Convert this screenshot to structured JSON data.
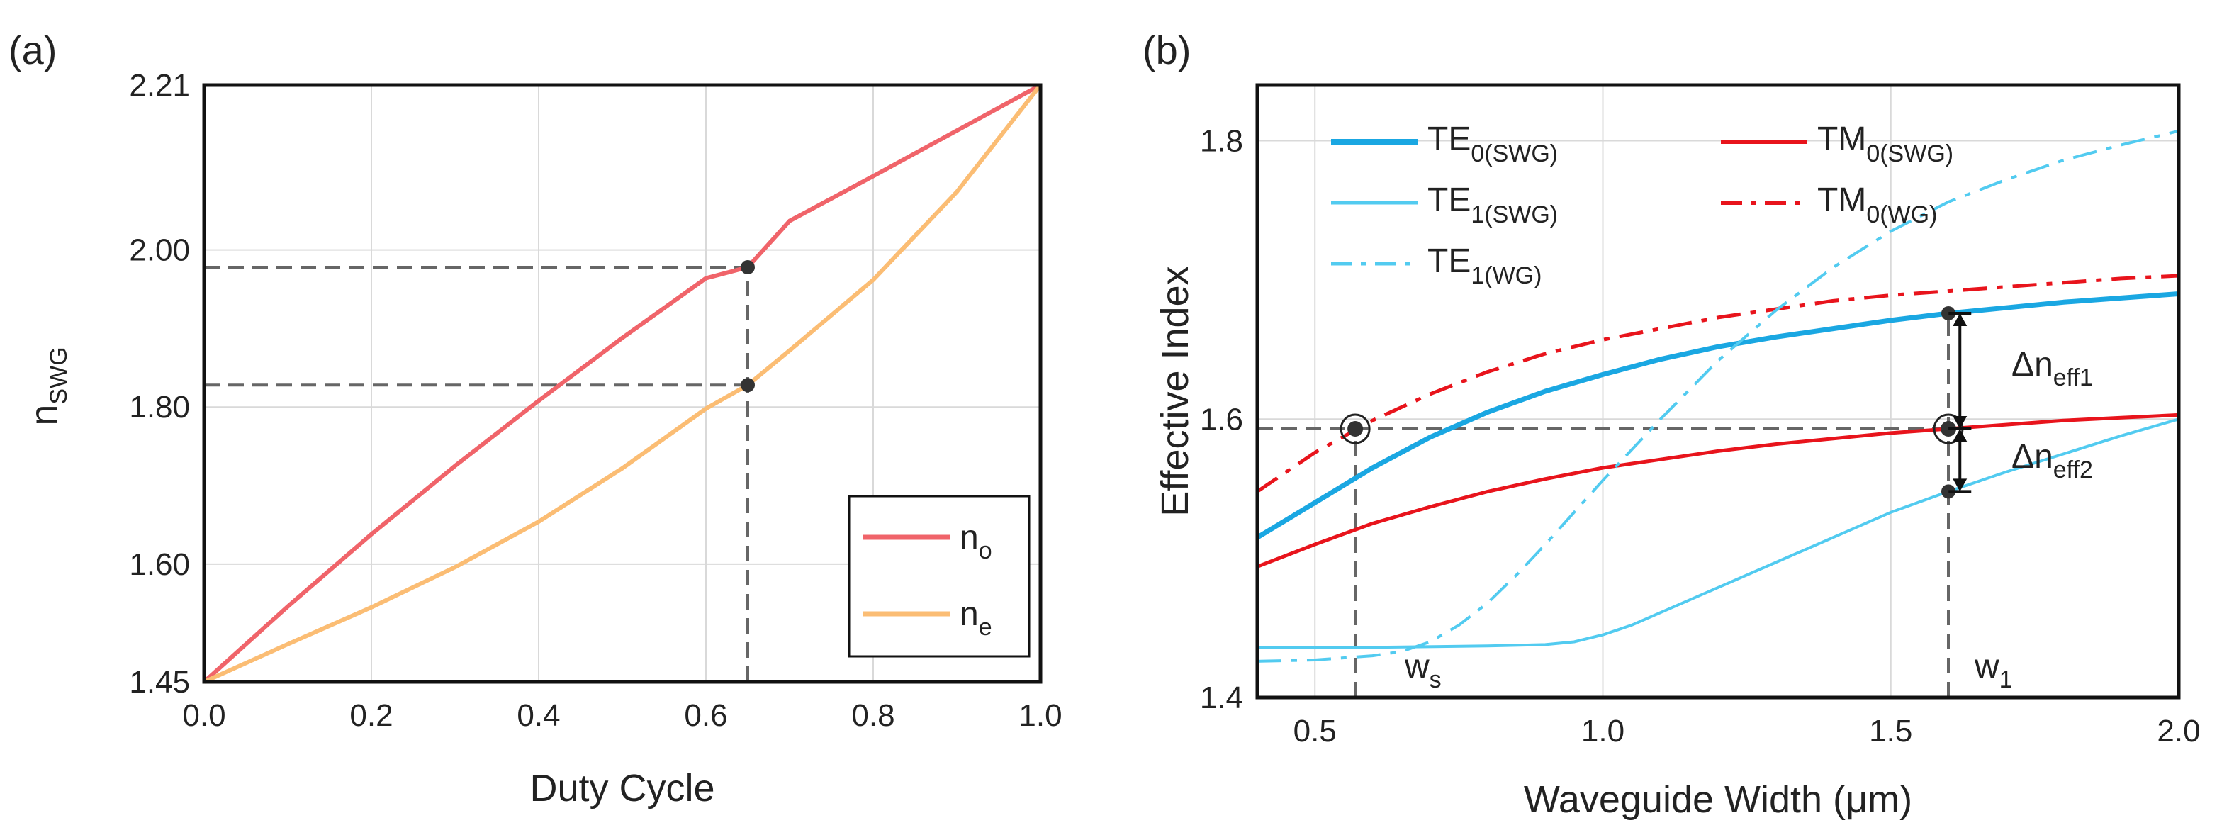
{
  "chart_data": [
    {
      "type": "line",
      "panel_label": "(a)",
      "xlabel": "Duty Cycle",
      "ylabel": "n",
      "ylabel_sub": "SWG",
      "xlim": [
        0,
        1
      ],
      "ylim": [
        1.45,
        2.21
      ],
      "xticks": [
        {
          "v": 0.0,
          "label": "0.0"
        },
        {
          "v": 0.2,
          "label": "0.2"
        },
        {
          "v": 0.4,
          "label": "0.4"
        },
        {
          "v": 0.6,
          "label": "0.6"
        },
        {
          "v": 0.8,
          "label": "0.8"
        },
        {
          "v": 1.0,
          "label": "1.0"
        }
      ],
      "yticks": [
        {
          "v": 1.45,
          "label": "1.45"
        },
        {
          "v": 1.6,
          "label": "1.60"
        },
        {
          "v": 1.8,
          "label": "1.80"
        },
        {
          "v": 2.0,
          "label": "2.00"
        },
        {
          "v": 2.21,
          "label": "2.21"
        }
      ],
      "grid": true,
      "legend_position": "bottom-right",
      "series": [
        {
          "name": "n",
          "sub": "o",
          "color": "#f0646a",
          "style": "solid",
          "x": [
            0,
            0.1,
            0.2,
            0.3,
            0.4,
            0.5,
            0.6,
            0.65,
            0.7,
            0.8,
            0.9,
            1.0
          ],
          "y": [
            1.45,
            1.546,
            1.638,
            1.725,
            1.808,
            1.888,
            1.964,
            1.978,
            2.037,
            2.094,
            2.152,
            2.21
          ]
        },
        {
          "name": "n",
          "sub": "e",
          "color": "#fbbd74",
          "style": "solid",
          "x": [
            0,
            0.1,
            0.2,
            0.3,
            0.4,
            0.5,
            0.6,
            0.65,
            0.7,
            0.8,
            0.9,
            1.0
          ],
          "y": [
            1.45,
            1.498,
            1.545,
            1.596,
            1.654,
            1.722,
            1.798,
            1.828,
            1.872,
            1.962,
            2.074,
            2.21
          ]
        }
      ],
      "markers": [
        {
          "x": 0.65,
          "y": 1.978
        },
        {
          "x": 0.65,
          "y": 1.828
        }
      ],
      "guides": [
        {
          "x1": 0,
          "y1": 1.978,
          "x2": 0.65,
          "y2": 1.978
        },
        {
          "x1": 0,
          "y1": 1.828,
          "x2": 0.65,
          "y2": 1.828
        },
        {
          "x1": 0.65,
          "y1": 1.45,
          "x2": 0.65,
          "y2": 1.978
        }
      ]
    },
    {
      "type": "line",
      "panel_label": "(b)",
      "xlabel": "Waveguide Width (μm)",
      "ylabel": "Effective Index",
      "xlim": [
        0.4,
        2.0
      ],
      "ylim": [
        1.4,
        1.84
      ],
      "xticks": [
        {
          "v": 0.5,
          "label": "0.5"
        },
        {
          "v": 1.0,
          "label": "1.0"
        },
        {
          "v": 1.5,
          "label": "1.5"
        },
        {
          "v": 2.0,
          "label": "2.0"
        }
      ],
      "yticks": [
        {
          "v": 1.4,
          "label": "1.4"
        },
        {
          "v": 1.6,
          "label": "1.6"
        },
        {
          "v": 1.8,
          "label": "1.8"
        }
      ],
      "grid": true,
      "legend_position": "top-left",
      "series": [
        {
          "name": "TE",
          "sub": "0(SWG)",
          "color": "#1aa7e2",
          "style": "solid",
          "width": 7,
          "x": [
            0.4,
            0.5,
            0.6,
            0.7,
            0.8,
            0.9,
            1.0,
            1.1,
            1.2,
            1.3,
            1.4,
            1.5,
            1.6,
            1.7,
            1.8,
            1.9,
            2.0
          ],
          "y": [
            1.515,
            1.54,
            1.565,
            1.587,
            1.605,
            1.62,
            1.632,
            1.643,
            1.652,
            1.659,
            1.665,
            1.671,
            1.676,
            1.68,
            1.684,
            1.687,
            1.69
          ]
        },
        {
          "name": "TM",
          "sub": "0(SWG)",
          "color": "#e8141c",
          "style": "solid",
          "width": 5,
          "x": [
            0.4,
            0.5,
            0.6,
            0.7,
            0.8,
            0.9,
            1.0,
            1.1,
            1.2,
            1.3,
            1.4,
            1.5,
            1.6,
            1.7,
            1.8,
            1.9,
            2.0
          ],
          "y": [
            1.494,
            1.51,
            1.525,
            1.537,
            1.548,
            1.557,
            1.565,
            1.571,
            1.577,
            1.582,
            1.586,
            1.59,
            1.593,
            1.596,
            1.599,
            1.601,
            1.603
          ]
        },
        {
          "name": "TE",
          "sub": "1(SWG)",
          "color": "#52cbf0",
          "style": "solid",
          "width": 4,
          "x": [
            0.4,
            0.6,
            0.8,
            0.9,
            0.95,
            1.0,
            1.05,
            1.1,
            1.2,
            1.3,
            1.4,
            1.5,
            1.6,
            1.7,
            1.8,
            1.9,
            2.0
          ],
          "y": [
            1.436,
            1.436,
            1.437,
            1.438,
            1.44,
            1.445,
            1.452,
            1.461,
            1.479,
            1.497,
            1.515,
            1.533,
            1.548,
            1.562,
            1.575,
            1.588,
            1.6
          ]
        },
        {
          "name": "TM",
          "sub": "0(WG)",
          "color": "#e8141c",
          "style": "dashdot",
          "width": 5,
          "x": [
            0.4,
            0.5,
            0.6,
            0.7,
            0.8,
            0.9,
            1.0,
            1.1,
            1.2,
            1.3,
            1.4,
            1.5,
            1.6,
            1.7,
            1.8,
            1.9,
            2.0
          ],
          "y": [
            1.548,
            1.576,
            1.599,
            1.618,
            1.634,
            1.647,
            1.657,
            1.665,
            1.673,
            1.679,
            1.685,
            1.689,
            1.692,
            1.695,
            1.698,
            1.701,
            1.703
          ]
        },
        {
          "name": "TE",
          "sub": "1(WG)",
          "color": "#52cbf0",
          "style": "dashdot",
          "width": 4,
          "x": [
            0.4,
            0.5,
            0.6,
            0.65,
            0.7,
            0.75,
            0.8,
            0.85,
            0.9,
            0.95,
            1.0,
            1.1,
            1.2,
            1.3,
            1.4,
            1.5,
            1.6,
            1.7,
            1.8,
            1.9,
            2.0
          ],
          "y": [
            1.426,
            1.427,
            1.43,
            1.433,
            1.44,
            1.452,
            1.468,
            1.488,
            1.51,
            1.533,
            1.556,
            1.6,
            1.642,
            1.678,
            1.709,
            1.735,
            1.756,
            1.772,
            1.786,
            1.797,
            1.807
          ]
        }
      ],
      "markers": [
        {
          "x": 1.6,
          "y": 1.676
        },
        {
          "x": 1.6,
          "y": 1.548
        }
      ],
      "circled_markers": [
        {
          "x": 0.57,
          "y": 1.593
        },
        {
          "x": 1.6,
          "y": 1.593
        }
      ],
      "guides": [
        {
          "x1": 0.4,
          "y1": 1.593,
          "x2": 1.6,
          "y2": 1.593
        },
        {
          "x1": 0.57,
          "y1": 1.4,
          "x2": 0.57,
          "y2": 1.593
        },
        {
          "x1": 1.6,
          "y1": 1.4,
          "x2": 1.6,
          "y2": 1.676
        }
      ],
      "arrows": [
        {
          "x": 1.62,
          "y1": 1.676,
          "y2": 1.593
        },
        {
          "x": 1.62,
          "y1": 1.593,
          "y2": 1.548
        }
      ],
      "annotations": [
        {
          "id": "ws",
          "text": "w",
          "sub": "s"
        },
        {
          "id": "w1",
          "text": "w",
          "sub": "1"
        },
        {
          "id": "dn1",
          "text": "Δn",
          "sub": "eff1"
        },
        {
          "id": "dn2",
          "text": "Δn",
          "sub": "eff2"
        }
      ]
    }
  ]
}
